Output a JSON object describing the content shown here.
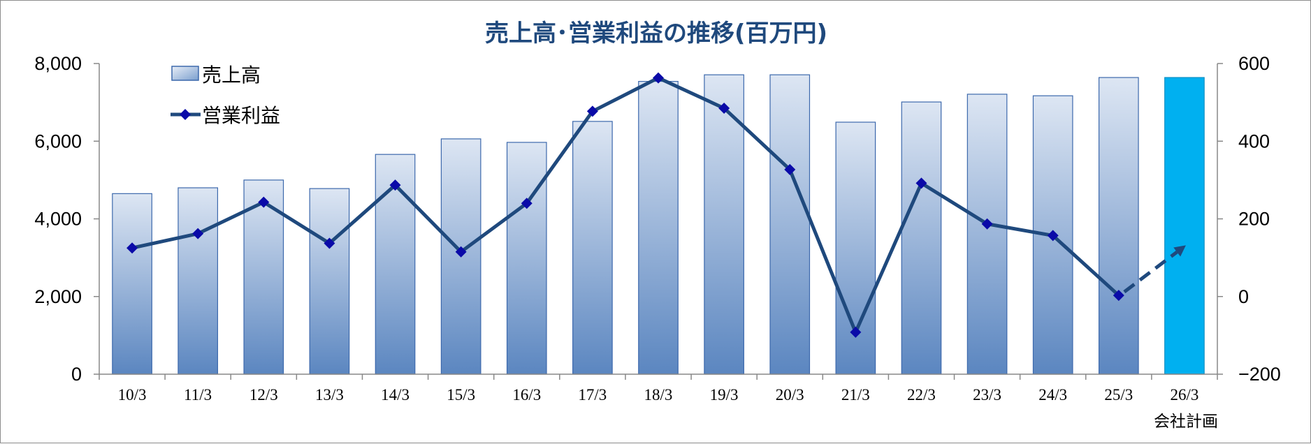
{
  "chart_data": {
    "type": "bar",
    "title": "売上高･営業利益の推移(百万円)",
    "categories": [
      "10/3",
      "11/3",
      "12/3",
      "13/3",
      "14/3",
      "15/3",
      "16/3",
      "17/3",
      "18/3",
      "19/3",
      "20/3",
      "21/3",
      "22/3",
      "23/3",
      "24/3",
      "25/3",
      "26/3"
    ],
    "category_sublabel": {
      "index": 16,
      "text": "会社計画"
    },
    "series": [
      {
        "name": "売上高",
        "type": "bar",
        "axis": "left",
        "values": [
          4650,
          4800,
          5000,
          4780,
          5660,
          6060,
          5970,
          6510,
          7540,
          7710,
          7710,
          6490,
          7010,
          7210,
          7170,
          7640,
          7640
        ],
        "highlight_index": 16
      },
      {
        "name": "営業利益",
        "type": "line",
        "axis": "right",
        "values": [
          125,
          162,
          243,
          137,
          287,
          115,
          240,
          477,
          563,
          485,
          327,
          -92,
          292,
          187,
          157,
          3,
          132
        ],
        "projected_from_index": 15
      }
    ],
    "y_left": {
      "min": 0,
      "max": 8000,
      "ticks": [
        0,
        2000,
        4000,
        6000,
        8000
      ],
      "tick_labels": [
        "0",
        "2,000",
        "4,000",
        "6,000",
        "8,000"
      ]
    },
    "y_right": {
      "min": -200,
      "max": 600,
      "ticks": [
        -200,
        0,
        200,
        400,
        600
      ],
      "tick_labels": [
        "−200",
        "0",
        "200",
        "400",
        "600"
      ],
      "negative_label_color": "#ff0000"
    },
    "grid": false,
    "legend_position": "top-left",
    "colors": {
      "title": "#1f497d",
      "bar_top": "#dde6f3",
      "bar_bottom": "#5b86c0",
      "bar_border": "#3c68ac",
      "highlight_bar": "#00b0f0",
      "line": "#1f497d",
      "marker": "#0a0aa8"
    }
  }
}
